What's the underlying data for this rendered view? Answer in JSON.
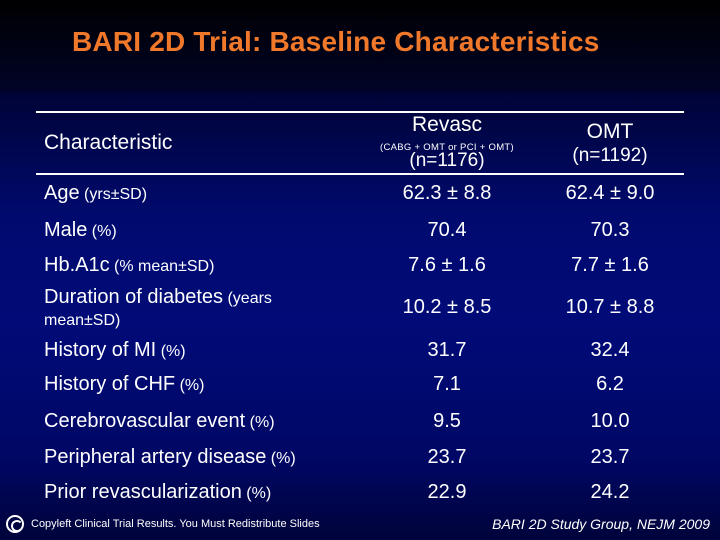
{
  "title": "BARI 2D Trial: Baseline Characteristics",
  "header": {
    "characteristic": "Characteristic",
    "revasc_label": "Revasc",
    "revasc_sub": "(CABG + OMT or PCI + OMT)",
    "revasc_n": "(n=1176)",
    "omt_label": "OMT",
    "omt_n": "(n=1192)"
  },
  "rows": [
    {
      "label": "Age",
      "unit": " (yrs±SD)",
      "revasc": "62.3 ± 8.8",
      "omt": "62.4 ± 9.0"
    },
    {
      "label": "Male",
      "unit": " (%)",
      "revasc": "70.4",
      "omt": "70.3"
    },
    {
      "label": "Hb.A1c",
      "unit": " (% mean±SD)",
      "revasc": "7.6 ± 1.6",
      "omt": "7.7 ± 1.6"
    },
    {
      "label": "Duration of diabetes",
      "unit": " (years",
      "unit_line2": "mean±SD)",
      "revasc": "10.2 ± 8.5",
      "omt": "10.7 ± 8.8"
    },
    {
      "label": "History of MI",
      "unit": " (%)",
      "revasc": "31.7",
      "omt": "32.4"
    },
    {
      "label": "History of CHF",
      "unit": " (%)",
      "revasc": "7.1",
      "omt": "6.2"
    },
    {
      "label": "Cerebrovascular event",
      "unit": " (%)",
      "revasc": "9.5",
      "omt": "10.0"
    },
    {
      "label": "Peripheral artery disease",
      "unit": " (%)",
      "revasc": "23.7",
      "omt": "23.7"
    },
    {
      "label": "Prior revascularization",
      "unit": " (%)",
      "revasc": "22.9",
      "omt": "24.2"
    }
  ],
  "footer": {
    "icon": "copyleft-icon",
    "left_text": "Copyleft Clinical Trial Results. You Must Redistribute Slides",
    "right_text": "BARI 2D Study Group, NEJM 2009"
  },
  "colors": {
    "title": "#f0782a",
    "background": "#000b78",
    "text": "#ffffff"
  }
}
